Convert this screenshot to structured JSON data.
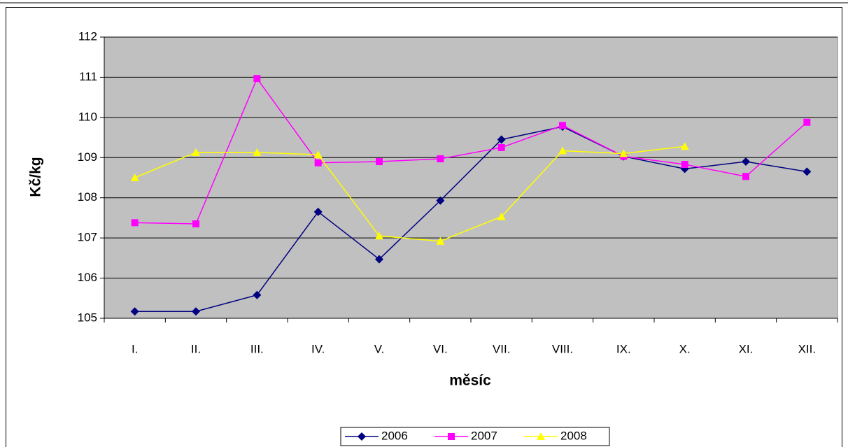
{
  "chart_data": {
    "type": "line",
    "y_label": "Kč/kg",
    "x_label": "měsíc",
    "categories": [
      "I.",
      "II.",
      "III.",
      "IV.",
      "V.",
      "VI.",
      "VII.",
      "VIII.",
      "IX.",
      "X.",
      "XI.",
      "XII."
    ],
    "series": [
      {
        "name": "2006",
        "color": "#000080",
        "marker": "diamond",
        "values": [
          105.17,
          105.17,
          105.58,
          107.65,
          106.47,
          107.93,
          109.45,
          109.77,
          109.03,
          108.72,
          108.9,
          108.65
        ]
      },
      {
        "name": "2007",
        "color": "#ff00ff",
        "marker": "square",
        "values": [
          107.38,
          107.35,
          110.97,
          108.87,
          108.9,
          108.97,
          109.25,
          109.8,
          109.03,
          108.83,
          108.53,
          109.88
        ]
      },
      {
        "name": "2008",
        "color": "#ffff00",
        "marker": "triangle",
        "values": [
          108.5,
          109.13,
          109.13,
          109.07,
          107.05,
          106.92,
          107.53,
          109.17,
          109.1,
          109.28,
          null,
          null
        ]
      }
    ],
    "ylim": [
      105,
      112
    ],
    "yticks": [
      105,
      106,
      107,
      108,
      109,
      110,
      111,
      112
    ],
    "grid": true,
    "plot_background": "#c0c0c0",
    "legend": "bottom"
  }
}
